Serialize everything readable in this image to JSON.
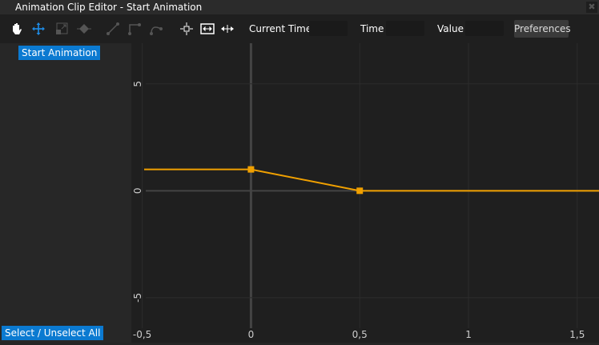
{
  "window": {
    "title": "Animation Clip Editor - Start Animation",
    "close_icon": "close-icon"
  },
  "toolbar": {
    "tools": [
      "hand-icon",
      "move-icon",
      "scale-icon",
      "keyframe-icon",
      "linear-tangent-icon",
      "step-tangent-icon",
      "bezier-tangent-icon",
      "frame-selection-icon",
      "fit-all-icon",
      "fit-horizontal-icon"
    ],
    "current_time_label": "Current Time",
    "current_time_value": "",
    "time_label": "Time",
    "time_value": "",
    "value_label": "Value",
    "value_value": "",
    "preferences_label": "Preferences",
    "active_color": "#1e8ce6"
  },
  "sidebar": {
    "clip_label": "Start Animation",
    "select_all_label": "Select / Unselect All",
    "accent": "#0b7ad1"
  },
  "chart_data": {
    "type": "line",
    "xlim": [
      -0.55,
      1.6
    ],
    "ylim": [
      -7.1,
      6.9
    ],
    "x_ticks": [
      {
        "v": -0.5,
        "label": "-0,5"
      },
      {
        "v": 0,
        "label": "0"
      },
      {
        "v": 0.5,
        "label": "0,5"
      },
      {
        "v": 1,
        "label": "1"
      },
      {
        "v": 1.5,
        "label": "1,5"
      }
    ],
    "y_ticks": [
      {
        "v": 5,
        "label": "5"
      },
      {
        "v": 0,
        "label": "0"
      },
      {
        "v": -5,
        "label": "-5"
      }
    ],
    "grid": true,
    "series": [
      {
        "keys": [
          [
            0,
            1
          ],
          [
            0.5,
            0
          ]
        ],
        "color": "#f0a000"
      }
    ]
  }
}
